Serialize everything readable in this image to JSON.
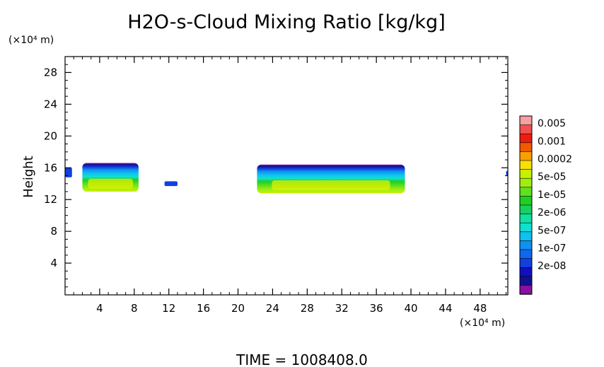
{
  "chart_data": {
    "type": "heatmap",
    "title": "H2O-s-Cloud Mixing Ratio [kg/kg]",
    "xlabel": "",
    "ylabel": "Height",
    "x_unit_label": "(×10⁴ m)",
    "y_unit_label": "(×10⁴ m)",
    "x_ticks": [
      4,
      8,
      12,
      16,
      20,
      24,
      28,
      32,
      36,
      40,
      44,
      48
    ],
    "y_ticks": [
      4,
      8,
      12,
      16,
      20,
      24,
      28
    ],
    "xlim": [
      0,
      51.2
    ],
    "ylim": [
      0,
      30
    ],
    "footer": "TIME = 1008408.0",
    "colorbar": {
      "labels": [
        "0.005",
        "0.001",
        "0.0002",
        "5e-05",
        "1e-05",
        "2e-06",
        "5e-07",
        "1e-07",
        "2e-08"
      ],
      "colors_top_to_bottom": [
        "#f6a0a0",
        "#f35050",
        "#ee1c10",
        "#f05a00",
        "#f8a000",
        "#f7e000",
        "#c8f000",
        "#a0ee10",
        "#60e020",
        "#20d020",
        "#18d060",
        "#10e0a0",
        "#10e0d0",
        "#10c0f0",
        "#1090f0",
        "#1068f0",
        "#1040e0",
        "#1010c0",
        "#101090",
        "#8a10a0"
      ]
    },
    "cloud_regions": [
      {
        "x_start": 0.0,
        "x_end": 0.8,
        "y_bottom": 14.8,
        "y_top": 16.0,
        "peak": "1e-07"
      },
      {
        "x_start": 2.0,
        "x_end": 8.5,
        "y_bottom": 13.0,
        "y_top": 16.6,
        "peak": "5e-05"
      },
      {
        "x_start": 11.5,
        "x_end": 13.0,
        "y_bottom": 13.7,
        "y_top": 14.3,
        "peak": "1e-07"
      },
      {
        "x_start": 22.2,
        "x_end": 39.3,
        "y_bottom": 12.8,
        "y_top": 16.4,
        "peak": "5e-05"
      },
      {
        "x_start": 51.0,
        "x_end": 51.2,
        "y_bottom": 15.0,
        "y_top": 15.6,
        "peak": "1e-07"
      }
    ]
  }
}
